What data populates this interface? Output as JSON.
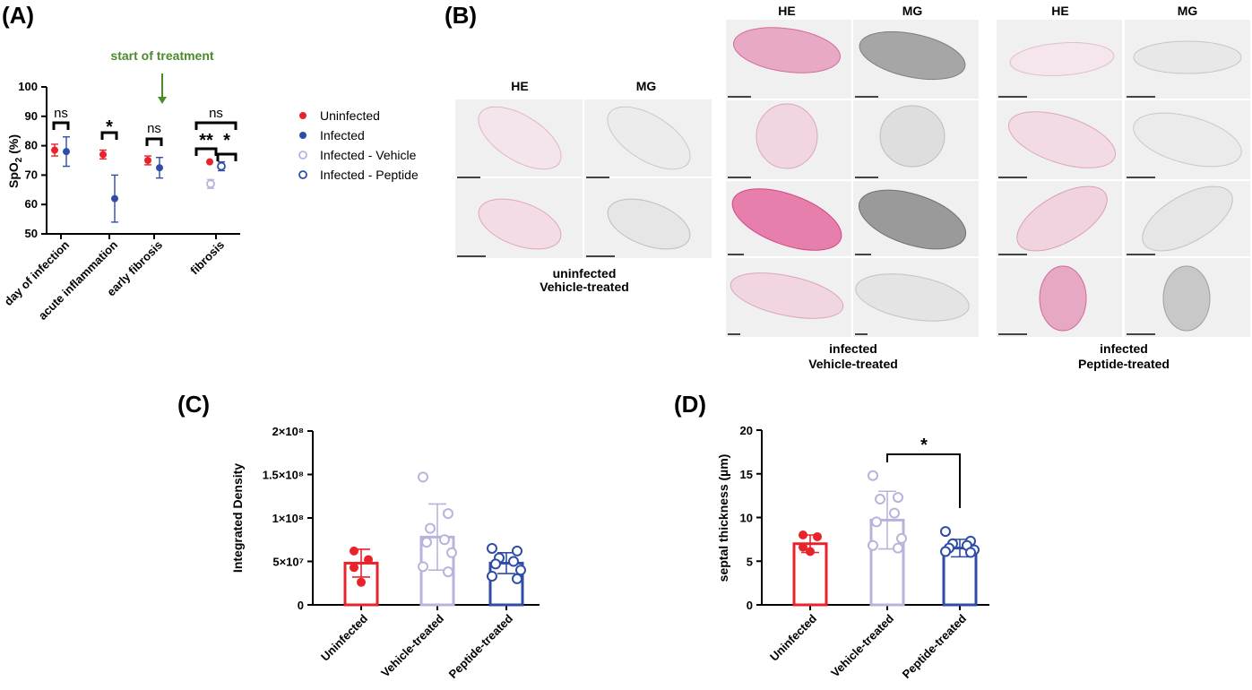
{
  "panels": {
    "a": "(A)",
    "b": "(B)",
    "c": "(C)",
    "d": "(D)"
  },
  "colors": {
    "uninfected": "#e8232b",
    "infected": "#2e4da7",
    "vehicle": "#b7b4dc",
    "peptide": "#2e4da7",
    "annotation": "#4a8a2a",
    "he_stain": "#d46b9a",
    "mg_stain": "#7f7f7f"
  },
  "panel_b": {
    "groups": [
      {
        "caption_line1": "uninfected",
        "caption_line2": "Vehicle-treated",
        "he": "HE",
        "mg": "MG"
      },
      {
        "caption_line1": "infected",
        "caption_line2": "Vehicle-treated",
        "he": "HE",
        "mg": "MG"
      },
      {
        "caption_line1": "infected",
        "caption_line2": "Peptide-treated",
        "he": "HE",
        "mg": "MG"
      }
    ]
  },
  "chart_data": [
    {
      "id": "A",
      "type": "scatter",
      "ylabel": "SpO",
      "ylabel_sub": "2",
      "ylabel_unit": " (%)",
      "ylim": [
        50,
        100
      ],
      "yticks": [
        50,
        60,
        70,
        80,
        90,
        100
      ],
      "categories": [
        "day of infection",
        "acute inflammation",
        "early fibrosis",
        "fibrosis"
      ],
      "annotation": "start of treatment",
      "series": [
        {
          "name": "Uninfected",
          "style": "filled",
          "color": "#e8232b",
          "values": [
            78.5,
            77,
            75,
            74.5
          ],
          "errors": [
            2,
            1.5,
            1.5,
            0
          ]
        },
        {
          "name": "Infected",
          "style": "filled",
          "color": "#2e4da7",
          "values": [
            78,
            62,
            72.5,
            null
          ],
          "errors": [
            5,
            8,
            3.5,
            null
          ]
        },
        {
          "name": "Infected - Vehicle",
          "style": "open",
          "color": "#b7b4dc",
          "values": [
            null,
            null,
            null,
            67
          ],
          "errors": [
            null,
            null,
            null,
            1.5
          ]
        },
        {
          "name": "Infected - Peptide",
          "style": "open",
          "color": "#2e4da7",
          "values": [
            null,
            null,
            null,
            73
          ],
          "errors": [
            null,
            null,
            null,
            1.5
          ]
        }
      ],
      "significance": [
        "ns",
        "*",
        "ns",
        "ns",
        "**",
        "*"
      ]
    },
    {
      "id": "C",
      "type": "bar",
      "ylabel": "Integrated Density",
      "ylim": [
        0,
        200000000
      ],
      "ytick_values": [
        0,
        50000000,
        100000000,
        150000000,
        200000000
      ],
      "ytick_labels": [
        "0",
        "5×10⁷",
        "1×10⁸",
        "1.5×10⁸",
        "2×10⁸"
      ],
      "categories": [
        "Uninfected",
        "Vehicle-treated",
        "Peptide-treated"
      ],
      "colors": [
        "#e8232b",
        "#b7b4dc",
        "#2e4da7"
      ],
      "values": [
        48000000,
        78000000,
        48000000
      ],
      "errors": [
        16000000,
        38000000,
        12000000
      ],
      "points": [
        [
          62000000,
          52000000,
          43000000,
          26000000
        ],
        [
          147000000,
          105000000,
          88000000,
          75000000,
          72000000,
          60000000,
          44000000,
          38000000
        ],
        [
          65000000,
          62000000,
          54000000,
          50000000,
          47000000,
          40000000,
          33000000,
          30000000
        ]
      ]
    },
    {
      "id": "D",
      "type": "bar",
      "ylabel": "septal thickness (µm)",
      "ylim": [
        0,
        20
      ],
      "ytick_values": [
        0,
        5,
        10,
        15,
        20
      ],
      "ytick_labels": [
        "0",
        "5",
        "10",
        "15",
        "20"
      ],
      "categories": [
        "Uninfected",
        "Vehicle-treated",
        "Peptide-treated"
      ],
      "colors": [
        "#e8232b",
        "#b7b4dc",
        "#2e4da7"
      ],
      "values": [
        7,
        9.7,
        6.5
      ],
      "errors": [
        1,
        3.3,
        1
      ],
      "points": [
        [
          8,
          7.8,
          6.6,
          6.1
        ],
        [
          14.8,
          12.3,
          12.1,
          10.5,
          9.5,
          7.6,
          6.8,
          6.5
        ],
        [
          8.4,
          7.3,
          7.0,
          6.8,
          6.5,
          6.3,
          6.1,
          6.0
        ]
      ],
      "significance": "*"
    }
  ]
}
